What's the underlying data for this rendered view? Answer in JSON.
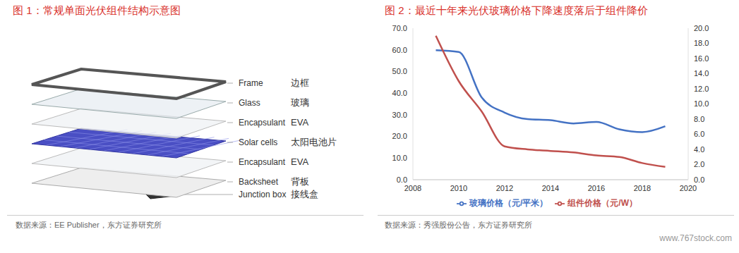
{
  "figure1": {
    "title": "图 1：常规单面光伏组件结构示意图",
    "layers": [
      {
        "en": "Frame",
        "zh": "边框"
      },
      {
        "en": "Glass",
        "zh": "玻璃"
      },
      {
        "en": "Encapsulant",
        "zh": "EVA"
      },
      {
        "en": "Solar cells",
        "zh": "太阳电池片"
      },
      {
        "en": "Encapsulant",
        "zh": "EVA"
      },
      {
        "en": "Backsheet",
        "zh": "背板"
      },
      {
        "en": "Junction box",
        "zh": "接线盒"
      }
    ],
    "source": "数据来源：EE Publisher，东方证券研究所"
  },
  "chart_data": {
    "type": "line",
    "title": "图 2：最近十年来光伏玻璃价格下降速度落后于组件降价",
    "x": [
      2009,
      2010,
      2011,
      2012,
      2013,
      2014,
      2015,
      2016,
      2017,
      2018,
      2019
    ],
    "xlim": [
      2008,
      2020
    ],
    "xticks": [
      2008,
      2010,
      2012,
      2014,
      2016,
      2018,
      2020
    ],
    "ylim": [
      0,
      70
    ],
    "yticks": [
      {
        "value": 0,
        "label": "0.0"
      },
      {
        "value": 10,
        "label": "10.0"
      },
      {
        "value": 20,
        "label": "20.0"
      },
      {
        "value": 30,
        "label": "30.0"
      },
      {
        "value": 40,
        "label": "40.0"
      },
      {
        "value": 50,
        "label": "50.0"
      },
      {
        "value": 60,
        "label": "60.0"
      },
      {
        "value": 70,
        "label": "70.0"
      }
    ],
    "y2lim": [
      0,
      20
    ],
    "y2ticks": [
      {
        "value": 0,
        "label": "0.0"
      },
      {
        "value": 2,
        "label": "2.0"
      },
      {
        "value": 4,
        "label": "4.0"
      },
      {
        "value": 6,
        "label": "6.0"
      },
      {
        "value": 8,
        "label": "8.0"
      },
      {
        "value": 10,
        "label": "10.0"
      },
      {
        "value": 12,
        "label": "12.0"
      },
      {
        "value": 14,
        "label": "14.0"
      },
      {
        "value": 16,
        "label": "16.0"
      },
      {
        "value": 18,
        "label": "18.0"
      },
      {
        "value": 20,
        "label": "20.0"
      }
    ],
    "grid": false,
    "legend": "bottom",
    "series": [
      {
        "name": "玻璃价格（元/平米）",
        "color": "#4472c4",
        "marker": "none",
        "line_style": "solid",
        "values": [
          59.8,
          59,
          38,
          31,
          28,
          27.5,
          26,
          26.7,
          23.3,
          22,
          24.7
        ]
      },
      {
        "name": "组件价格（元/W）",
        "color": "#c0504d",
        "axis": "y2",
        "marker": "none",
        "line_style": "solid",
        "values": [
          19.0,
          13.0,
          9.0,
          4.4,
          4.0,
          3.8,
          3.6,
          3.2,
          3.0,
          2.2,
          1.7
        ]
      }
    ],
    "source": "数据来源：秀强股份公告，东方证券研究所"
  },
  "watermark": "www.767stock.com"
}
